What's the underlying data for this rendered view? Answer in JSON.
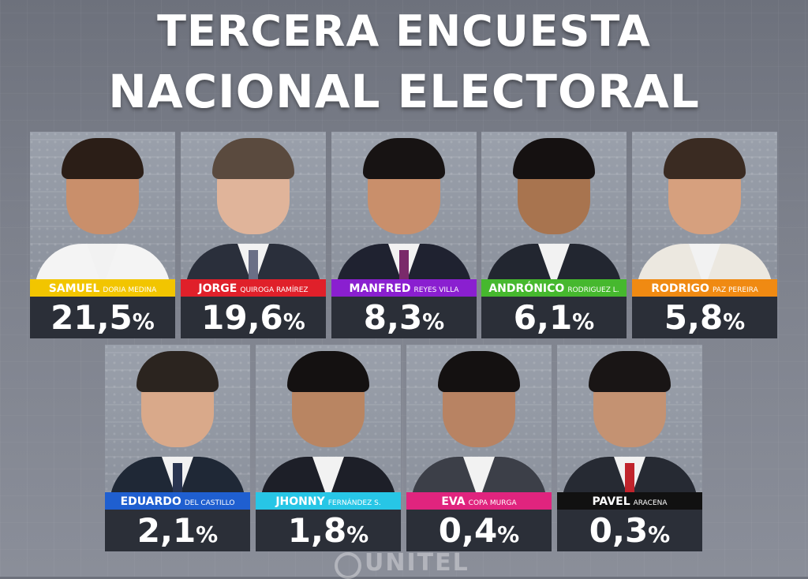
{
  "title": {
    "line1": "TERCERA ENCUESTA",
    "line2": "NACIONAL ELECTORAL"
  },
  "candidates": [
    {
      "first": "SAMUEL",
      "last": "DORIA MEDINA",
      "percent": "21,5",
      "bar_color": "#f2c500",
      "text_color": "#ffffff"
    },
    {
      "first": "JORGE",
      "last": "QUIROGA RAMÍREZ",
      "percent": "19,6",
      "bar_color": "#e0202a",
      "text_color": "#ffffff"
    },
    {
      "first": "MANFRED",
      "last": "REYES VILLA",
      "percent": "8,3",
      "bar_color": "#8a1fd0",
      "text_color": "#ffffff"
    },
    {
      "first": "ANDRÓNICO",
      "last": "RODRIGUEZ L.",
      "percent": "6,1",
      "bar_color": "#46b82e",
      "text_color": "#ffffff"
    },
    {
      "first": "RODRIGO",
      "last": "PAZ PEREIRA",
      "percent": "5,8",
      "bar_color": "#f08a12",
      "text_color": "#ffffff"
    },
    {
      "first": "EDUARDO",
      "last": "DEL CASTILLO",
      "percent": "2,1",
      "bar_color": "#1f5fd0",
      "text_color": "#ffffff"
    },
    {
      "first": "JHONNY",
      "last": "FERNÁNDEZ S.",
      "percent": "1,8",
      "bar_color": "#27c6e6",
      "text_color": "#ffffff"
    },
    {
      "first": "EVA",
      "last": "COPA MURGA",
      "percent": "0,4",
      "bar_color": "#e0247e",
      "text_color": "#ffffff"
    },
    {
      "first": "PAVEL",
      "last": "ARACENA",
      "percent": "0,3",
      "bar_color": "#111111",
      "text_color": "#ffffff"
    }
  ],
  "percent_sign": "%",
  "watermark": "UNITEL"
}
